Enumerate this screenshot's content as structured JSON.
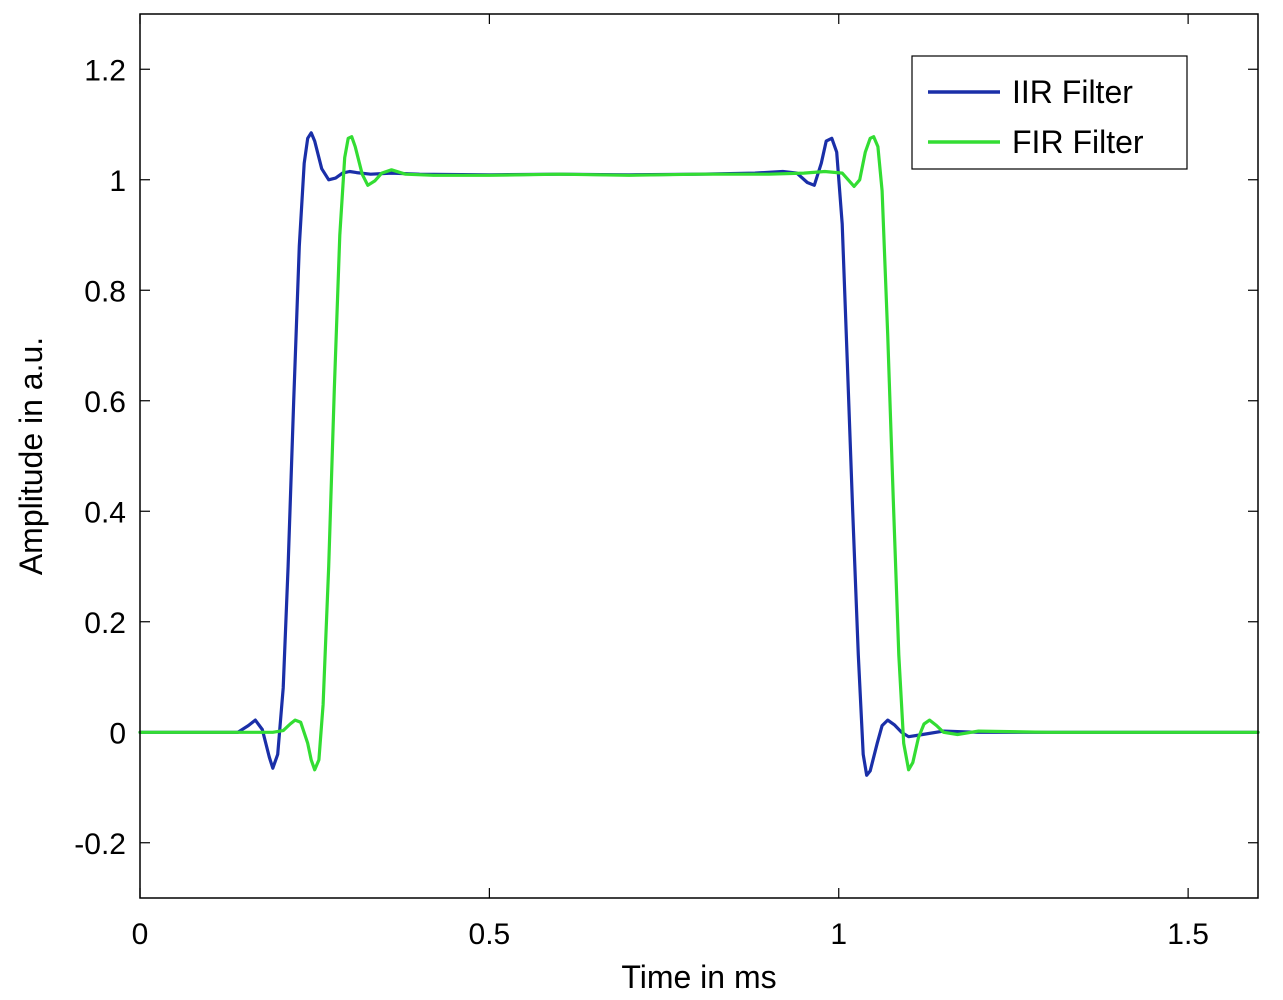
{
  "chart_data": {
    "type": "line",
    "title": "",
    "xlabel": "Time in ms",
    "ylabel": "Amplitude in a.u.",
    "xlim": [
      0,
      1.6
    ],
    "ylim": [
      -0.3,
      1.3
    ],
    "xticks": [
      0,
      0.5,
      1,
      1.5
    ],
    "xtick_labels": [
      "0",
      "0.5",
      "1",
      "1.5"
    ],
    "yticks": [
      -0.2,
      0,
      0.2,
      0.4,
      0.6,
      0.8,
      1,
      1.2
    ],
    "ytick_labels": [
      "-0.2",
      "0",
      "0.2",
      "0.4",
      "0.6",
      "0.8",
      "1",
      "1.2"
    ],
    "grid": false,
    "legend_position": "top-right",
    "series": [
      {
        "name": "IIR Filter",
        "color": "#1a2fa8",
        "points": [
          [
            0.0,
            0.0
          ],
          [
            0.12,
            0.0
          ],
          [
            0.14,
            0.0
          ],
          [
            0.155,
            0.012
          ],
          [
            0.165,
            0.022
          ],
          [
            0.175,
            0.005
          ],
          [
            0.185,
            -0.045
          ],
          [
            0.19,
            -0.065
          ],
          [
            0.197,
            -0.04
          ],
          [
            0.205,
            0.08
          ],
          [
            0.212,
            0.3
          ],
          [
            0.22,
            0.6
          ],
          [
            0.228,
            0.88
          ],
          [
            0.235,
            1.03
          ],
          [
            0.24,
            1.075
          ],
          [
            0.245,
            1.085
          ],
          [
            0.25,
            1.07
          ],
          [
            0.26,
            1.02
          ],
          [
            0.27,
            1.0
          ],
          [
            0.28,
            1.003
          ],
          [
            0.29,
            1.012
          ],
          [
            0.3,
            1.015
          ],
          [
            0.31,
            1.013
          ],
          [
            0.33,
            1.01
          ],
          [
            0.36,
            1.012
          ],
          [
            0.4,
            1.01
          ],
          [
            0.5,
            1.009
          ],
          [
            0.6,
            1.01
          ],
          [
            0.7,
            1.009
          ],
          [
            0.8,
            1.01
          ],
          [
            0.88,
            1.012
          ],
          [
            0.92,
            1.015
          ],
          [
            0.94,
            1.012
          ],
          [
            0.955,
            0.995
          ],
          [
            0.965,
            0.99
          ],
          [
            0.975,
            1.03
          ],
          [
            0.982,
            1.07
          ],
          [
            0.99,
            1.075
          ],
          [
            0.997,
            1.05
          ],
          [
            1.005,
            0.92
          ],
          [
            1.012,
            0.68
          ],
          [
            1.02,
            0.4
          ],
          [
            1.028,
            0.14
          ],
          [
            1.035,
            -0.04
          ],
          [
            1.04,
            -0.078
          ],
          [
            1.045,
            -0.07
          ],
          [
            1.055,
            -0.02
          ],
          [
            1.062,
            0.012
          ],
          [
            1.07,
            0.022
          ],
          [
            1.08,
            0.013
          ],
          [
            1.09,
            0.0
          ],
          [
            1.1,
            -0.008
          ],
          [
            1.12,
            -0.004
          ],
          [
            1.15,
            0.002
          ],
          [
            1.2,
            0.0
          ],
          [
            1.3,
            0.0
          ],
          [
            1.4,
            0.0
          ],
          [
            1.5,
            0.0
          ],
          [
            1.6,
            0.0
          ]
        ]
      },
      {
        "name": "FIR Filter",
        "color": "#33dd33",
        "points": [
          [
            0.0,
            0.0
          ],
          [
            0.19,
            0.0
          ],
          [
            0.205,
            0.003
          ],
          [
            0.215,
            0.015
          ],
          [
            0.222,
            0.022
          ],
          [
            0.23,
            0.018
          ],
          [
            0.24,
            -0.02
          ],
          [
            0.245,
            -0.05
          ],
          [
            0.25,
            -0.068
          ],
          [
            0.256,
            -0.05
          ],
          [
            0.262,
            0.05
          ],
          [
            0.27,
            0.3
          ],
          [
            0.278,
            0.62
          ],
          [
            0.286,
            0.9
          ],
          [
            0.293,
            1.04
          ],
          [
            0.298,
            1.075
          ],
          [
            0.303,
            1.078
          ],
          [
            0.308,
            1.06
          ],
          [
            0.318,
            1.01
          ],
          [
            0.326,
            0.99
          ],
          [
            0.336,
            0.998
          ],
          [
            0.346,
            1.012
          ],
          [
            0.36,
            1.018
          ],
          [
            0.38,
            1.01
          ],
          [
            0.42,
            1.008
          ],
          [
            0.5,
            1.008
          ],
          [
            0.6,
            1.01
          ],
          [
            0.7,
            1.008
          ],
          [
            0.8,
            1.01
          ],
          [
            0.9,
            1.01
          ],
          [
            0.95,
            1.012
          ],
          [
            0.98,
            1.015
          ],
          [
            1.005,
            1.012
          ],
          [
            1.015,
            0.998
          ],
          [
            1.022,
            0.988
          ],
          [
            1.03,
            1.0
          ],
          [
            1.038,
            1.05
          ],
          [
            1.045,
            1.075
          ],
          [
            1.05,
            1.078
          ],
          [
            1.056,
            1.06
          ],
          [
            1.062,
            0.98
          ],
          [
            1.07,
            0.72
          ],
          [
            1.078,
            0.42
          ],
          [
            1.086,
            0.14
          ],
          [
            1.093,
            -0.02
          ],
          [
            1.1,
            -0.068
          ],
          [
            1.106,
            -0.055
          ],
          [
            1.114,
            -0.01
          ],
          [
            1.122,
            0.015
          ],
          [
            1.13,
            0.022
          ],
          [
            1.14,
            0.012
          ],
          [
            1.15,
            0.0
          ],
          [
            1.17,
            -0.004
          ],
          [
            1.2,
            0.002
          ],
          [
            1.3,
            0.0
          ],
          [
            1.4,
            0.0
          ],
          [
            1.5,
            0.0
          ],
          [
            1.6,
            0.0
          ]
        ]
      }
    ]
  }
}
